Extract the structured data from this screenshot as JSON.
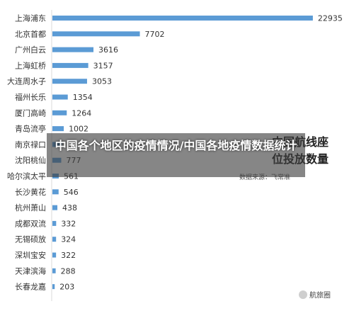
{
  "chart_data": {
    "type": "bar",
    "orientation": "horizontal",
    "categories": [
      "上海浦东",
      "北京首都",
      "广州白云",
      "上海虹桥",
      "大连周水子",
      "福州长乐",
      "厦门高崎",
      "青岛流亭",
      "南京禄口",
      "沈阳桃仙",
      "哈尔滨太平",
      "长沙黄花",
      "杭州萧山",
      "成都双流",
      "无锡硕放",
      "深圳宝安",
      "天津滨海",
      "长春龙嘉"
    ],
    "values": [
      22935,
      7702,
      3616,
      3157,
      3053,
      1354,
      1264,
      1002,
      850,
      777,
      561,
      546,
      438,
      332,
      324,
      322,
      288,
      203
    ],
    "value_labels": [
      "22935",
      "7702",
      "3616",
      "3157",
      "3053",
      "1354",
      "1264",
      "1002",
      "",
      "777",
      "561",
      "546",
      "438",
      "332",
      "324",
      "322",
      "288",
      "203"
    ],
    "xlim": [
      0,
      25000
    ],
    "bar_color": "#5b9bd5",
    "grid": false,
    "legend": "none"
  },
  "overlay": {
    "title": "中国各个地区的疫情情况/中国各地疫情数据统计",
    "background_title": "中国航线座位投放数量",
    "source": "数据来源：飞常准"
  },
  "watermark": {
    "text": "航旅圈"
  }
}
